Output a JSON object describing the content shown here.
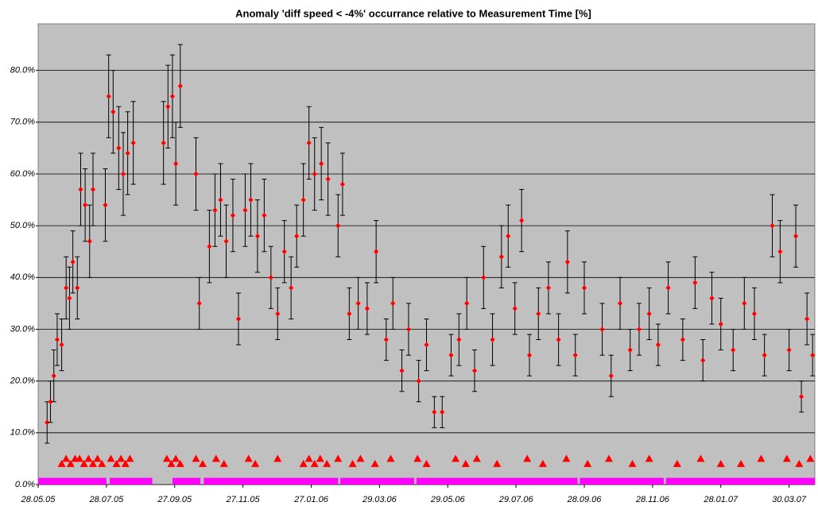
{
  "chart_data": {
    "type": "scatter",
    "title": "Anomaly 'diff speed < -4%' occurrance relative to Measurement Time [%]",
    "x": [
      "2005-06-05",
      "2005-06-08",
      "2005-06-11",
      "2005-06-14",
      "2005-06-18",
      "2005-06-22",
      "2005-06-25",
      "2005-06-28",
      "2005-07-02",
      "2005-07-05",
      "2005-07-09",
      "2005-07-13",
      "2005-07-16",
      "2005-07-27",
      "2005-07-30",
      "2005-08-03",
      "2005-08-08",
      "2005-08-12",
      "2005-08-16",
      "2005-08-21",
      "2005-09-17",
      "2005-09-21",
      "2005-09-25",
      "2005-09-28",
      "2005-10-02",
      "2005-10-16",
      "2005-10-19",
      "2005-10-28",
      "2005-11-02",
      "2005-11-07",
      "2005-11-12",
      "2005-11-18",
      "2005-11-23",
      "2005-11-29",
      "2005-12-04",
      "2005-12-10",
      "2005-12-16",
      "2005-12-22",
      "2005-12-28",
      "2006-01-03",
      "2006-01-09",
      "2006-01-14",
      "2006-01-20",
      "2006-01-25",
      "2006-01-30",
      "2006-02-05",
      "2006-02-11",
      "2006-02-20",
      "2006-02-24",
      "2006-03-02",
      "2006-03-10",
      "2006-03-18",
      "2006-03-26",
      "2006-04-04",
      "2006-04-10",
      "2006-04-18",
      "2006-04-24",
      "2006-05-03",
      "2006-05-10",
      "2006-05-17",
      "2006-05-24",
      "2006-06-01",
      "2006-06-08",
      "2006-06-15",
      "2006-06-22",
      "2006-06-30",
      "2006-07-08",
      "2006-07-16",
      "2006-07-22",
      "2006-07-28",
      "2006-08-03",
      "2006-08-10",
      "2006-08-18",
      "2006-08-27",
      "2006-09-05",
      "2006-09-13",
      "2006-09-20",
      "2006-09-28",
      "2006-10-14",
      "2006-10-22",
      "2006-10-30",
      "2006-11-08",
      "2006-11-16",
      "2006-11-25",
      "2006-12-03",
      "2006-12-12",
      "2006-12-25",
      "2007-01-05",
      "2007-01-12",
      "2007-01-20",
      "2007-01-28",
      "2007-02-08",
      "2007-02-18",
      "2007-02-27",
      "2007-03-08",
      "2007-03-15",
      "2007-03-22",
      "2007-03-30",
      "2007-04-05",
      "2007-04-10",
      "2007-04-15",
      "2007-04-20"
    ],
    "values": [
      12,
      16,
      21,
      28,
      27,
      38,
      36,
      43,
      38,
      57,
      54,
      47,
      57,
      54,
      75,
      72,
      65,
      60,
      64,
      66,
      66,
      73,
      75,
      62,
      77,
      60,
      35,
      46,
      53,
      55,
      47,
      52,
      32,
      53,
      55,
      48,
      52,
      40,
      33,
      45,
      38,
      48,
      55,
      66,
      60,
      62,
      59,
      50,
      58,
      33,
      35,
      34,
      45,
      28,
      35,
      22,
      30,
      20,
      27,
      14,
      14,
      25,
      28,
      35,
      22,
      40,
      28,
      44,
      48,
      34,
      51,
      25,
      33,
      38,
      28,
      43,
      25,
      38,
      30,
      21,
      35,
      26,
      30,
      33,
      27,
      38,
      28,
      39,
      24,
      36,
      31,
      26,
      35,
      33,
      25,
      50,
      45,
      26,
      48,
      17,
      32,
      25
    ],
    "errors": [
      4,
      4,
      5,
      5,
      5,
      6,
      6,
      6,
      6,
      7,
      7,
      7,
      7,
      7,
      8,
      8,
      8,
      8,
      8,
      8,
      8,
      8,
      8,
      8,
      8,
      7,
      5,
      7,
      7,
      7,
      7,
      7,
      5,
      7,
      7,
      7,
      7,
      6,
      5,
      6,
      6,
      6,
      7,
      7,
      7,
      7,
      7,
      6,
      6,
      5,
      5,
      5,
      6,
      4,
      5,
      4,
      5,
      4,
      5,
      3,
      3,
      4,
      5,
      5,
      4,
      6,
      5,
      6,
      6,
      5,
      6,
      4,
      5,
      5,
      5,
      6,
      4,
      5,
      5,
      4,
      5,
      4,
      5,
      5,
      4,
      5,
      4,
      5,
      4,
      5,
      5,
      4,
      5,
      5,
      4,
      6,
      6,
      4,
      6,
      3,
      5,
      4
    ],
    "color": "#ff0000",
    "error_color": "#000000",
    "flags": {
      "color": "#ff0000",
      "x": [
        "2005-06-18",
        "2005-06-22",
        "2005-06-26",
        "2005-06-30",
        "2005-07-04",
        "2005-07-08",
        "2005-07-12",
        "2005-07-16",
        "2005-07-20",
        "2005-07-24",
        "2005-08-01",
        "2005-08-06",
        "2005-08-10",
        "2005-08-14",
        "2005-08-18",
        "2005-09-20",
        "2005-09-24",
        "2005-09-28",
        "2005-10-02",
        "2005-10-16",
        "2005-10-22",
        "2005-11-03",
        "2005-11-10",
        "2005-12-02",
        "2005-12-08",
        "2005-12-28",
        "2006-01-20",
        "2006-01-25",
        "2006-01-30",
        "2006-02-04",
        "2006-02-10",
        "2006-02-20",
        "2006-03-05",
        "2006-03-12",
        "2006-03-25",
        "2006-04-08",
        "2006-05-02",
        "2006-05-10",
        "2006-06-05",
        "2006-06-14",
        "2006-06-24",
        "2006-07-12",
        "2006-08-08",
        "2006-08-22",
        "2006-09-12",
        "2006-10-01",
        "2006-10-20",
        "2006-11-10",
        "2006-11-25",
        "2006-12-20",
        "2007-01-10",
        "2007-01-28",
        "2007-02-15",
        "2007-03-05",
        "2007-03-28",
        "2007-04-08",
        "2007-04-18"
      ],
      "values": [
        4,
        5,
        4,
        5,
        5,
        4,
        5,
        4,
        5,
        4,
        5,
        4,
        5,
        4,
        5,
        5,
        4,
        5,
        4,
        5,
        4,
        5,
        4,
        5,
        4,
        5,
        4,
        5,
        4,
        5,
        4,
        5,
        4,
        5,
        4,
        5,
        5,
        4,
        5,
        4,
        5,
        4,
        5,
        4,
        5,
        4,
        5,
        4,
        5,
        4,
        5,
        4,
        4,
        5,
        5,
        4,
        5
      ]
    },
    "coverage": {
      "color": "#ff00ff",
      "start": [
        "2005-05-28",
        "2005-07-31",
        "2005-09-25",
        "2005-10-23",
        "2006-02-22",
        "2006-05-01",
        "2006-09-24",
        "2006-12-10"
      ],
      "end": [
        "2005-07-28",
        "2005-09-07",
        "2005-10-20",
        "2006-02-20",
        "2006-04-29",
        "2006-09-22",
        "2006-12-08",
        "2007-04-22"
      ],
      "values": [
        1.3,
        1.3,
        1.3,
        1.3,
        1.3,
        1.3,
        1.3,
        1.3
      ]
    },
    "ylim": [
      0,
      89
    ],
    "yticks": [
      {
        "value": 0,
        "label": "0.0%"
      },
      {
        "value": 10,
        "label": "10.0%"
      },
      {
        "value": 20,
        "label": "20.0%"
      },
      {
        "value": 30,
        "label": "30.0%"
      },
      {
        "value": 40,
        "label": "40.0%"
      },
      {
        "value": 50,
        "label": "50.0%"
      },
      {
        "value": 60,
        "label": "60.0%"
      },
      {
        "value": 70,
        "label": "70.0%"
      },
      {
        "value": 80,
        "label": "80.0%"
      }
    ],
    "xlim": [
      "2005-05-28",
      "2007-04-22"
    ],
    "xticks": [
      {
        "value": "2005-05-28",
        "label": "28.05.05"
      },
      {
        "value": "2005-07-28",
        "label": "28.07.05"
      },
      {
        "value": "2005-09-27",
        "label": "27.09.05"
      },
      {
        "value": "2005-11-27",
        "label": "27.11.05"
      },
      {
        "value": "2006-01-27",
        "label": "27.01.06"
      },
      {
        "value": "2006-03-29",
        "label": "29.03.06"
      },
      {
        "value": "2006-05-29",
        "label": "29.05.06"
      },
      {
        "value": "2006-07-29",
        "label": "29.07.06"
      },
      {
        "value": "2006-09-28",
        "label": "28.09.06"
      },
      {
        "value": "2006-11-28",
        "label": "28.11.06"
      },
      {
        "value": "2007-01-28",
        "label": "28.01.07"
      },
      {
        "value": "2007-03-30",
        "label": "30.03.07"
      }
    ],
    "grid": true,
    "background": "#c0c0c0"
  }
}
